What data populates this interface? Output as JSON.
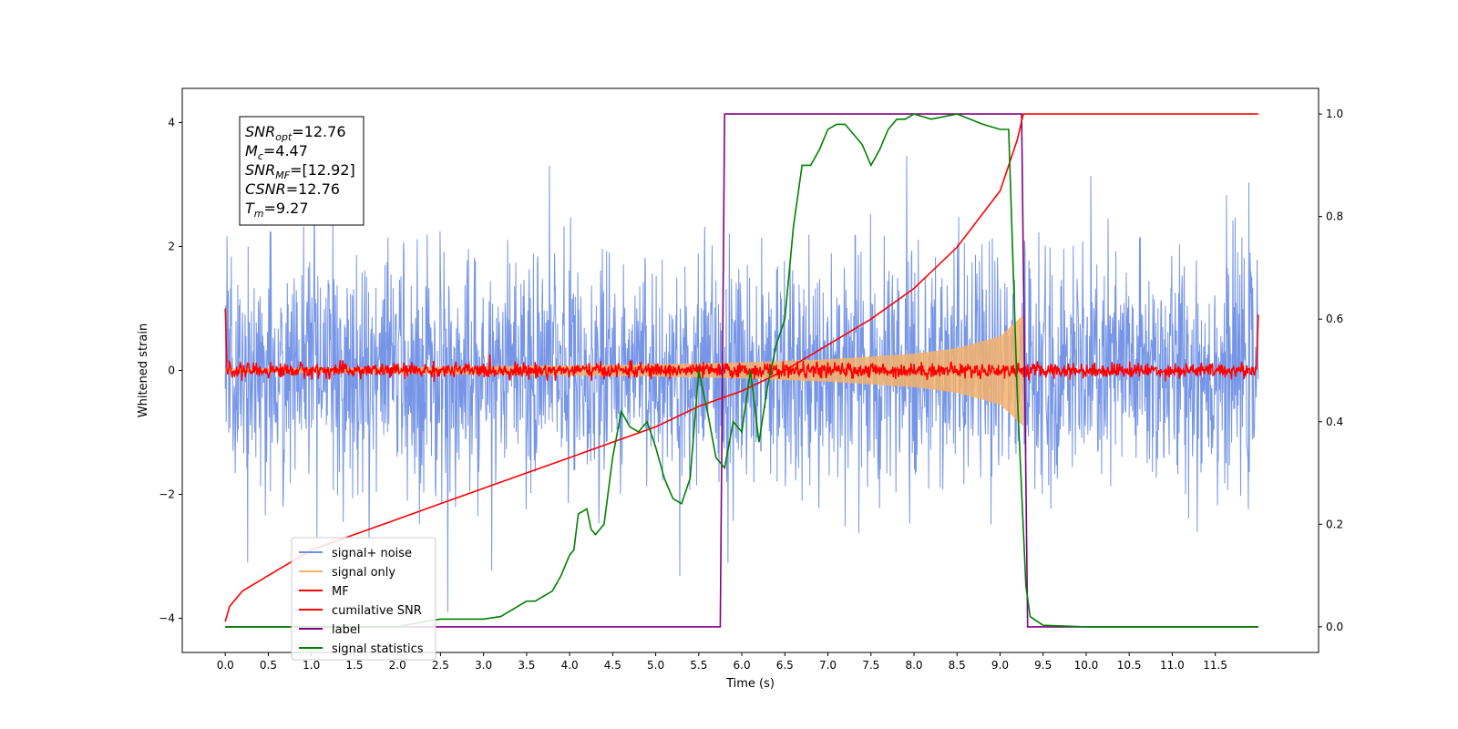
{
  "chart_data": {
    "type": "line",
    "title": "",
    "xlabel": "Time (s)",
    "ylabel": "Whitened strain",
    "xlim": [
      -0.5,
      12.7
    ],
    "ylim_left": [
      -4.55,
      4.55
    ],
    "ylim_right": [
      -0.05,
      1.05
    ],
    "grid": false,
    "legend_position": "lower-left",
    "x_ticks": [
      0.0,
      0.5,
      1.0,
      1.5,
      2.0,
      2.5,
      3.0,
      3.5,
      4.0,
      4.5,
      5.0,
      5.5,
      6.0,
      6.5,
      7.0,
      7.5,
      8.0,
      8.5,
      9.0,
      9.5,
      10.0,
      10.5,
      11.0,
      11.5
    ],
    "x_tick_labels": [
      "0.0",
      "0.5",
      "1.0",
      "1.5",
      "2.0",
      "2.5",
      "3.0",
      "3.5",
      "4.0",
      "4.5",
      "5.0",
      "5.5",
      "6.0",
      "6.5",
      "7.0",
      "7.5",
      "8.0",
      "8.5",
      "9.0",
      "9.5",
      "10.0",
      "10.5",
      "11.0",
      "11.5"
    ],
    "y_ticks_left": [
      -4,
      -2,
      0,
      2,
      4
    ],
    "y_tick_labels_left": [
      "−4",
      "−2",
      "0",
      "2",
      "4"
    ],
    "y_ticks_right": [
      0.0,
      0.2,
      0.4,
      0.6,
      0.8,
      1.0
    ],
    "y_tick_labels_right": [
      "0.0",
      "0.2",
      "0.4",
      "0.6",
      "0.8",
      "1.0"
    ],
    "annotation": [
      {
        "base": "SNR",
        "sub": "opt",
        "value": "=12.76"
      },
      {
        "base": "M",
        "sub": "c",
        "value": "=4.47"
      },
      {
        "base": "SNR",
        "sub": "MF",
        "value": "=[12.92]"
      },
      {
        "base": "CSNR",
        "sub": "",
        "value": "=12.76"
      },
      {
        "base": "T",
        "sub": "m",
        "value": "=9.27"
      }
    ],
    "series": [
      {
        "name": "signal+ noise",
        "axis": "left",
        "color": "#6f8fe6",
        "kind": "noise",
        "x_range": [
          0,
          12.0
        ],
        "amplitude_std": 0.95,
        "peak": 3.9
      },
      {
        "name": "signal only",
        "axis": "left",
        "color": "#f5b26b",
        "kind": "chirp_envelope",
        "x_range": [
          0,
          9.27
        ],
        "envelope_x": [
          0,
          2,
          4,
          5,
          6,
          7,
          8,
          8.5,
          9.0,
          9.27
        ],
        "envelope_y": [
          0.03,
          0.05,
          0.08,
          0.1,
          0.13,
          0.18,
          0.27,
          0.36,
          0.55,
          0.9
        ]
      },
      {
        "name": "MF",
        "axis": "left",
        "color": "#ff0000",
        "kind": "noise",
        "x_range": [
          0,
          12.0
        ],
        "amplitude_std": 0.06,
        "start_value": 1.0,
        "end_value": 0.9
      },
      {
        "name": "cumilative SNR",
        "axis": "right",
        "color": "#ff0000",
        "kind": "curve",
        "x": [
          0.0,
          0.05,
          0.2,
          0.5,
          1.0,
          1.5,
          2.0,
          2.5,
          3.0,
          3.5,
          4.0,
          4.5,
          5.0,
          5.5,
          6.0,
          6.5,
          7.0,
          7.5,
          8.0,
          8.5,
          9.0,
          9.2,
          9.27,
          10.0,
          11.0,
          12.0
        ],
        "y": [
          0.01,
          0.04,
          0.07,
          0.1,
          0.15,
          0.18,
          0.21,
          0.24,
          0.27,
          0.3,
          0.33,
          0.36,
          0.39,
          0.43,
          0.46,
          0.5,
          0.55,
          0.6,
          0.66,
          0.74,
          0.85,
          0.95,
          1.0,
          1.0,
          1.0,
          1.0
        ]
      },
      {
        "name": "label",
        "axis": "right",
        "color": "#800080",
        "kind": "step",
        "x": [
          0.0,
          5.75,
          5.8,
          9.25,
          9.32,
          12.0
        ],
        "y": [
          0.0,
          0.0,
          1.0,
          1.0,
          0.0,
          0.0
        ]
      },
      {
        "name": "signal statistics",
        "axis": "right",
        "color": "#008000",
        "kind": "curve",
        "x": [
          0.0,
          1.0,
          2.0,
          2.3,
          2.5,
          2.8,
          3.0,
          3.2,
          3.5,
          3.6,
          3.7,
          3.8,
          3.9,
          4.0,
          4.05,
          4.1,
          4.2,
          4.25,
          4.3,
          4.4,
          4.5,
          4.6,
          4.7,
          4.8,
          4.9,
          5.0,
          5.1,
          5.2,
          5.3,
          5.4,
          5.5,
          5.6,
          5.7,
          5.8,
          5.9,
          6.0,
          6.1,
          6.2,
          6.3,
          6.4,
          6.5,
          6.6,
          6.7,
          6.8,
          6.9,
          7.0,
          7.1,
          7.2,
          7.3,
          7.4,
          7.5,
          7.6,
          7.7,
          7.8,
          7.9,
          8.0,
          8.2,
          8.5,
          8.8,
          9.0,
          9.1,
          9.2,
          9.3,
          9.35,
          9.5,
          10.0,
          11.0,
          12.0
        ],
        "y": [
          0.0,
          0.0,
          0.0,
          0.01,
          0.015,
          0.015,
          0.015,
          0.02,
          0.05,
          0.05,
          0.06,
          0.07,
          0.1,
          0.14,
          0.15,
          0.22,
          0.23,
          0.19,
          0.18,
          0.2,
          0.33,
          0.42,
          0.39,
          0.38,
          0.4,
          0.35,
          0.29,
          0.25,
          0.24,
          0.29,
          0.5,
          0.42,
          0.33,
          0.31,
          0.4,
          0.38,
          0.5,
          0.36,
          0.47,
          0.55,
          0.6,
          0.78,
          0.9,
          0.9,
          0.93,
          0.97,
          0.98,
          0.98,
          0.96,
          0.94,
          0.9,
          0.93,
          0.97,
          0.99,
          0.99,
          1.0,
          0.99,
          1.0,
          0.98,
          0.97,
          0.97,
          0.45,
          0.08,
          0.02,
          0.003,
          0.0,
          0.0,
          0.0
        ]
      }
    ]
  }
}
